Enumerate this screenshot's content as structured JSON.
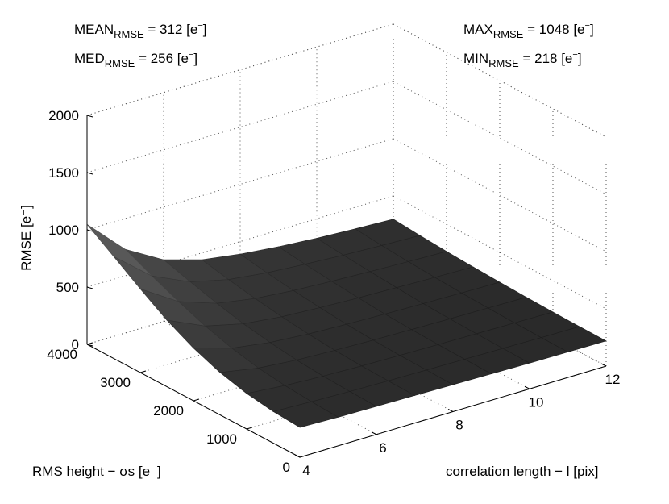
{
  "annotations": {
    "mean": {
      "prefix": "MEAN",
      "sub": "RMSE",
      "suffix": " = 312 [e",
      "sup": "−",
      "end": "]"
    },
    "med": {
      "prefix": "MED",
      "sub": "RMSE",
      "suffix": " = 256 [e",
      "sup": "−",
      "end": "]"
    },
    "max": {
      "prefix": "MAX",
      "sub": "RMSE",
      "suffix": " = 1048 [e",
      "sup": "−",
      "end": "]"
    },
    "min": {
      "prefix": "MIN",
      "sub": "RMSE",
      "suffix": " = 218 [e",
      "sup": "−",
      "end": "]"
    }
  },
  "chart_data": {
    "type": "surface",
    "zlabel": "RMSE [e⁻]",
    "ylabel": "RMS height − σs [e⁻]",
    "xlabel": "correlation length − l [pix]",
    "x_ticks": [
      "4",
      "6",
      "8",
      "10",
      "12"
    ],
    "y_ticks": [
      "0",
      "1000",
      "2000",
      "3000",
      "4000"
    ],
    "z_ticks": [
      "0",
      "500",
      "1000",
      "1500",
      "2000"
    ],
    "xlim": [
      4,
      12
    ],
    "ylim": [
      0,
      4000
    ],
    "zlim": [
      0,
      2000
    ],
    "grid": true,
    "surface_color": "#2b2b2b",
    "surface": {
      "x": [
        4,
        5,
        6,
        7,
        8,
        9,
        10,
        11,
        12
      ],
      "y": [
        0,
        500,
        1000,
        1500,
        2000,
        2500,
        3000,
        3500,
        4000
      ],
      "z": [
        [
          260,
          250,
          245,
          240,
          235,
          230,
          225,
          222,
          220
        ],
        [
          275,
          262,
          252,
          245,
          240,
          235,
          230,
          225,
          222
        ],
        [
          310,
          280,
          262,
          252,
          245,
          240,
          235,
          230,
          226
        ],
        [
          370,
          310,
          280,
          265,
          255,
          248,
          242,
          237,
          232
        ],
        [
          460,
          360,
          310,
          285,
          270,
          260,
          252,
          245,
          240
        ],
        [
          580,
          430,
          350,
          312,
          292,
          278,
          268,
          258,
          250
        ],
        [
          730,
          520,
          405,
          348,
          318,
          300,
          285,
          272,
          262
        ],
        [
          890,
          620,
          470,
          390,
          350,
          325,
          305,
          290,
          278
        ],
        [
          1048,
          730,
          540,
          440,
          390,
          355,
          330,
          312,
          298
        ]
      ]
    }
  }
}
